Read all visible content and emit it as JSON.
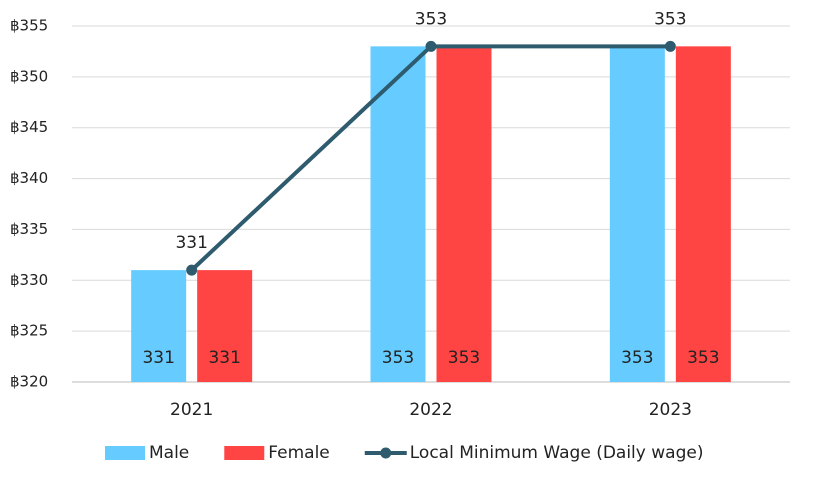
{
  "chart_data": {
    "type": "bar",
    "categories": [
      "2021",
      "2022",
      "2023"
    ],
    "series": [
      {
        "name": "Male",
        "color": "#66ccff",
        "values": [
          331,
          353,
          353
        ]
      },
      {
        "name": "Female",
        "color": "#ff4444",
        "values": [
          331,
          353,
          353
        ]
      },
      {
        "name": "Local Minimum Wage (Daily wage)",
        "type": "line",
        "color": "#2e5b6e",
        "values": [
          331,
          353,
          353
        ]
      }
    ],
    "ylim": [
      320,
      355
    ],
    "yticks": [
      {
        "value": 320,
        "label": "฿320"
      },
      {
        "value": 325,
        "label": "฿325"
      },
      {
        "value": 330,
        "label": "฿330"
      },
      {
        "value": 335,
        "label": "฿335"
      },
      {
        "value": 340,
        "label": "฿340"
      },
      {
        "value": 345,
        "label": "฿345"
      },
      {
        "value": 350,
        "label": "฿350"
      },
      {
        "value": 355,
        "label": "฿355"
      }
    ],
    "grid": true,
    "legend": "bottom"
  }
}
